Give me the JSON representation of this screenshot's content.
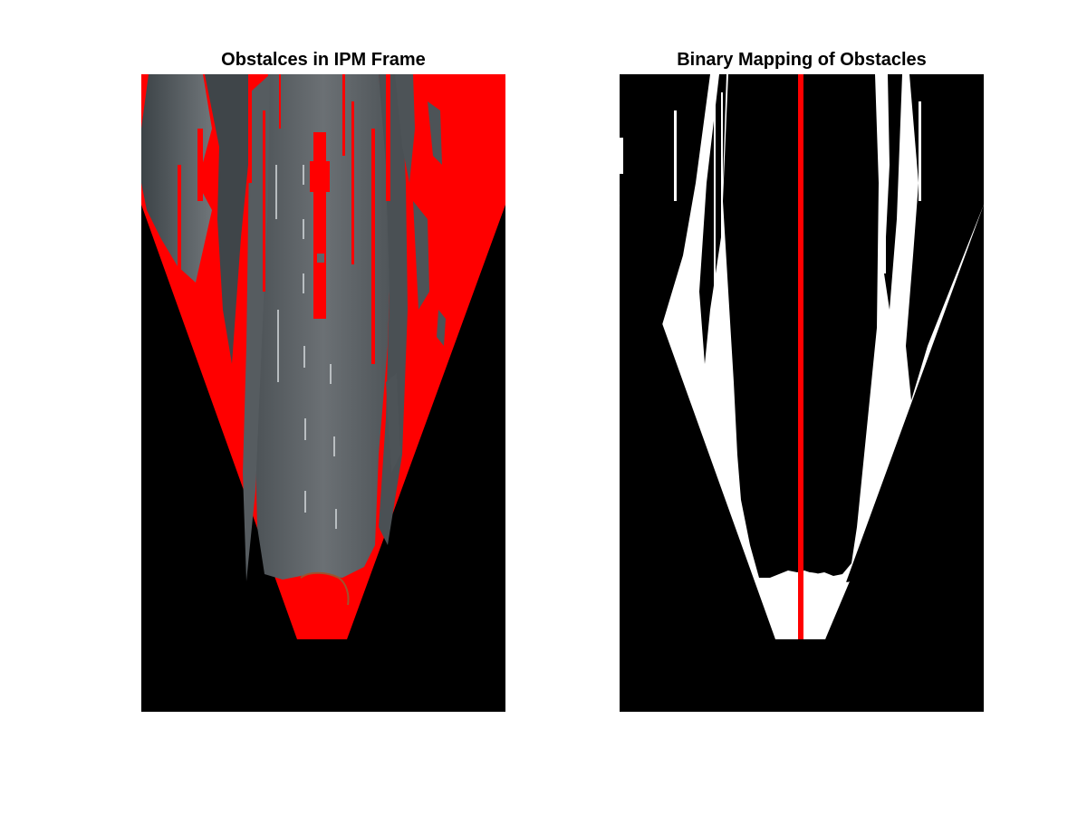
{
  "figure": {
    "panels": [
      {
        "title": "Obstalces in IPM Frame",
        "content": "ipm-road-image-with-red-obstacles"
      },
      {
        "title": "Binary Mapping of Obstacles",
        "content": "binary-obstacle-mask-with-path-line"
      }
    ]
  },
  "colors": {
    "obstacle": "#ff0000",
    "background": "#000000",
    "free_space": "#ffffff",
    "road": "#5f6468",
    "path_line": "#ff0000"
  }
}
